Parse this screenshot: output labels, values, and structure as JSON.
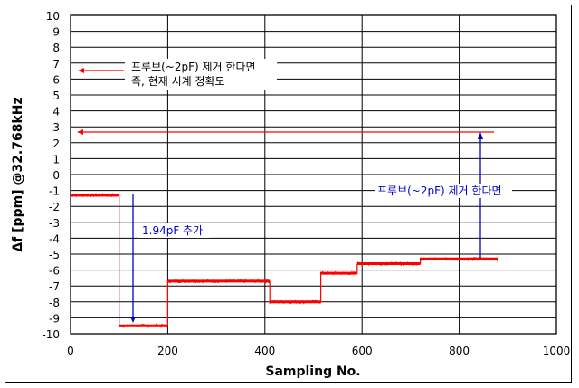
{
  "chart_data": {
    "type": "line",
    "title": "",
    "xlabel": "Sampling No.",
    "ylabel": "Δf [ppm] @32.768kHz",
    "xlim": [
      0,
      1000
    ],
    "ylim": [
      -10,
      10
    ],
    "x_ticks": [
      "0",
      "200",
      "400",
      "600",
      "800",
      "1000"
    ],
    "y_ticks": [
      "10",
      "9",
      "8",
      "7",
      "6",
      "5",
      "4",
      "3",
      "2",
      "1",
      "0",
      "-1",
      "-2",
      "-3",
      "-4",
      "-5",
      "-6",
      "-7",
      "-8",
      "-9",
      "-10"
    ],
    "grid": {
      "horizontal": true,
      "vertical": true
    },
    "legend": null,
    "series": [
      {
        "name": "Δf",
        "color": "#ff0000",
        "segments": [
          {
            "x_start": 0,
            "x_end": 100,
            "y": -1.3
          },
          {
            "x_start": 100,
            "x_end": 200,
            "y": -9.5
          },
          {
            "x_start": 200,
            "x_end": 410,
            "y": -6.7
          },
          {
            "x_start": 410,
            "x_end": 515,
            "y": -8.0
          },
          {
            "x_start": 515,
            "x_end": 590,
            "y": -6.2
          },
          {
            "x_start": 590,
            "x_end": 720,
            "y": -5.6
          },
          {
            "x_start": 720,
            "x_end": 880,
            "y": -5.3
          }
        ]
      }
    ],
    "annotations": [
      {
        "text_line1": "프루브(~2pF) 제거 한다면",
        "text_line2": "즉, 현재 시계 정확도",
        "color": "#000000",
        "arrow_color": "#ff0000",
        "arrow_to": {
          "x": 10,
          "y": 6.5
        }
      },
      {
        "text": "",
        "arrow_color": "#ff0000",
        "arrow_from": {
          "x": 890,
          "y": 2.7
        },
        "arrow_to": {
          "x": 10,
          "y": 2.7
        }
      },
      {
        "text": "1.94pF 추가",
        "color": "#0000cc",
        "arrow_color": "#0000cc",
        "arrow_from": {
          "x": 130,
          "y": -1.3
        },
        "arrow_to": {
          "x": 130,
          "y": -9.2
        }
      },
      {
        "text": "프루브(~2pF) 제거 한다면",
        "color": "#0000cc",
        "arrow_color": "#0000cc",
        "arrow_from": {
          "x": 843,
          "y": -5.2
        },
        "arrow_to": {
          "x": 843,
          "y": 2.6
        }
      }
    ]
  },
  "labels": {
    "xlabel": "Sampling No.",
    "ylabel": "Δf [ppm] @32.768kHz",
    "ann_top_line1": "프루브(~2pF) 제거 한다면",
    "ann_top_line2": "즉, 현재 시계 정확도",
    "ann_add": "1.94pF 추가",
    "ann_remove": "프루브(~2pF) 제거 한다면"
  },
  "colors": {
    "series": "#ff0000",
    "blue_annotation": "#0000cc",
    "grid": "#000000"
  }
}
